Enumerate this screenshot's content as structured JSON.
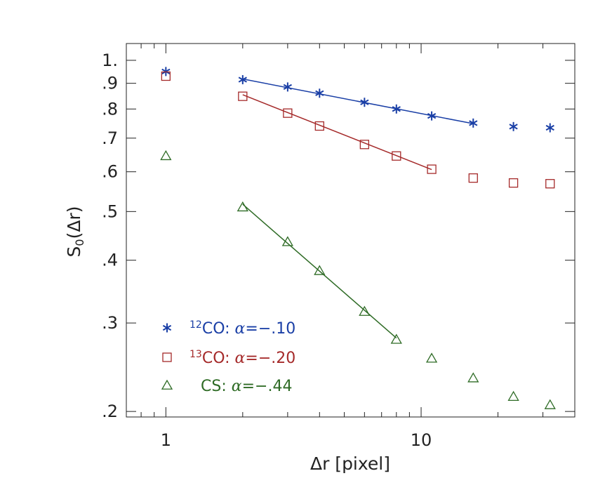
{
  "chart_data": {
    "type": "scatter",
    "title": "",
    "xlabel": "Δr [pixel]",
    "ylabel": "S",
    "ylabel_sub": "0",
    "ylabel_suffix": "(Δr)",
    "xscale": "log",
    "yscale": "log",
    "xlim": [
      0.7,
      40
    ],
    "ylim": [
      0.195,
      1.08
    ],
    "x_ticks": [
      {
        "value": 1,
        "label": "1"
      },
      {
        "value": 10,
        "label": "10"
      }
    ],
    "y_ticks": [
      {
        "value": 1.0,
        "label": "1."
      },
      {
        "value": 0.9,
        "label": ".9"
      },
      {
        "value": 0.8,
        "label": ".8"
      },
      {
        "value": 0.7,
        "label": ".7"
      },
      {
        "value": 0.6,
        "label": ".6"
      },
      {
        "value": 0.5,
        "label": ".5"
      },
      {
        "value": 0.4,
        "label": ".4"
      },
      {
        "value": 0.3,
        "label": ".3"
      },
      {
        "value": 0.2,
        "label": ".2"
      }
    ],
    "legend_position": "bottom-left",
    "series": [
      {
        "name": "12CO",
        "legend_sup": "12",
        "legend_mol": "CO",
        "legend_alpha": "=−.10",
        "marker": "asterisk",
        "color": "#1a3fa6",
        "x": [
          1,
          2,
          3,
          4,
          6,
          8,
          11,
          16,
          23,
          32
        ],
        "y": [
          0.95,
          0.915,
          0.885,
          0.86,
          0.825,
          0.8,
          0.775,
          0.75,
          0.738,
          0.734
        ],
        "fit": {
          "x": [
            2,
            16
          ],
          "y": [
            0.918,
            0.748
          ]
        }
      },
      {
        "name": "13CO",
        "legend_sup": "13",
        "legend_mol": "CO",
        "legend_alpha": "=−.20",
        "marker": "square",
        "color": "#a52a2a",
        "x": [
          1,
          2,
          3,
          4,
          6,
          8,
          11,
          16,
          23,
          32
        ],
        "y": [
          0.93,
          0.848,
          0.785,
          0.74,
          0.68,
          0.645,
          0.607,
          0.583,
          0.57,
          0.568
        ],
        "fit": {
          "x": [
            2,
            11
          ],
          "y": [
            0.854,
            0.606
          ]
        }
      },
      {
        "name": "CS",
        "legend_sup": "",
        "legend_mol": "CS",
        "legend_alpha": "=−.44",
        "marker": "triangle",
        "color": "#2e6b25",
        "x": [
          1,
          2,
          3,
          4,
          6,
          8,
          11,
          16,
          23,
          32
        ],
        "y": [
          0.645,
          0.51,
          0.435,
          0.381,
          0.316,
          0.278,
          0.255,
          0.233,
          0.214,
          0.206
        ],
        "fit": {
          "x": [
            2,
            8
          ],
          "y": [
            0.517,
            0.28
          ]
        }
      }
    ]
  }
}
